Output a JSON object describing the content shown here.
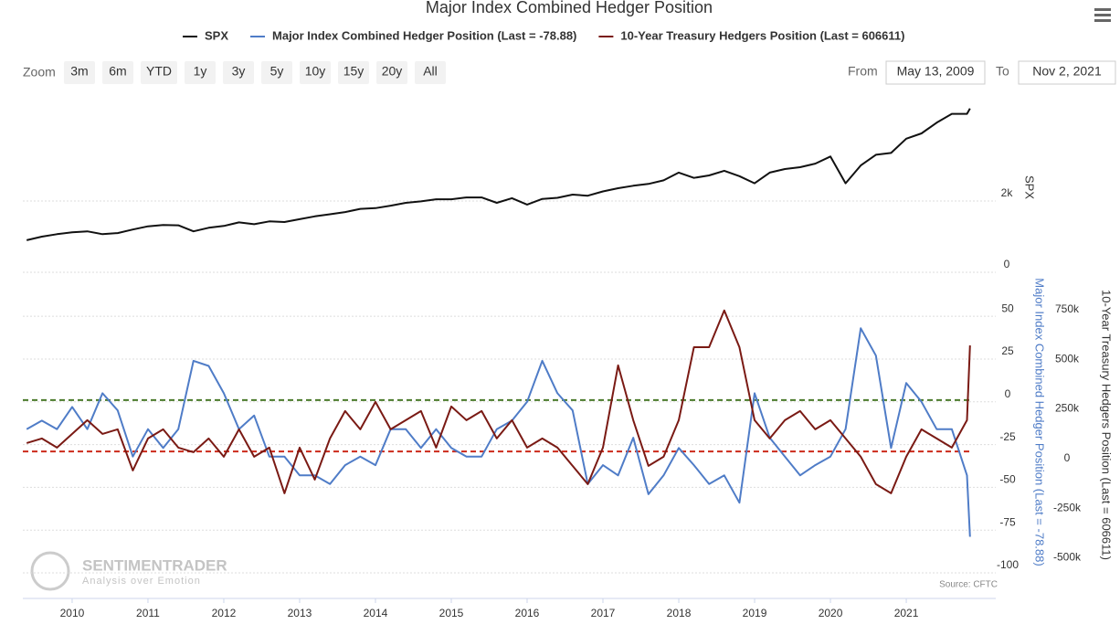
{
  "range_selector": {
    "zoom_label": "Zoom",
    "buttons": [
      "3m",
      "6m",
      "YTD",
      "1y",
      "3y",
      "5y",
      "10y",
      "15y",
      "20y",
      "All"
    ],
    "from_label": "From",
    "from": "May 13, 2009",
    "to_label": "To",
    "to": "Nov 2, 2021"
  },
  "chart_data": {
    "type": "line",
    "title": "Major Index Combined Hedger Position",
    "source": "Source: CFTC",
    "logo": "SENTIMENTRADER",
    "logo_tagline": "Analysis over Emotion",
    "x": [
      2009.4,
      2009.6,
      2009.8,
      2010,
      2010.2,
      2010.4,
      2010.6,
      2010.8,
      2011,
      2011.2,
      2011.4,
      2011.6,
      2011.8,
      2012,
      2012.2,
      2012.4,
      2012.6,
      2012.8,
      2013,
      2013.2,
      2013.4,
      2013.6,
      2013.8,
      2014,
      2014.2,
      2014.4,
      2014.6,
      2014.8,
      2015,
      2015.2,
      2015.4,
      2015.6,
      2015.8,
      2016,
      2016.2,
      2016.4,
      2016.6,
      2016.8,
      2017,
      2017.2,
      2017.4,
      2017.6,
      2017.8,
      2018,
      2018.2,
      2018.4,
      2018.6,
      2018.8,
      2019,
      2019.2,
      2019.4,
      2019.6,
      2019.8,
      2020,
      2020.2,
      2020.4,
      2020.6,
      2020.8,
      2021,
      2021.2,
      2021.4,
      2021.6,
      2021.8,
      2021.84
    ],
    "xlim": [
      2009.35,
      2022.18
    ],
    "xticks": [
      2010,
      2011,
      2012,
      2013,
      2014,
      2015,
      2016,
      2017,
      2018,
      2019,
      2020,
      2021
    ],
    "series": [
      {
        "name": "SPX",
        "color": "#111111",
        "axis": "y3",
        "values": [
          900,
          1000,
          1070,
          1120,
          1150,
          1070,
          1100,
          1200,
          1290,
          1330,
          1320,
          1150,
          1250,
          1300,
          1400,
          1350,
          1430,
          1410,
          1490,
          1570,
          1630,
          1690,
          1780,
          1800,
          1870,
          1950,
          1990,
          2050,
          2050,
          2100,
          2100,
          1950,
          2080,
          1900,
          2060,
          2090,
          2180,
          2150,
          2270,
          2360,
          2430,
          2480,
          2580,
          2800,
          2650,
          2720,
          2850,
          2700,
          2500,
          2800,
          2900,
          2950,
          3050,
          3250,
          2500,
          3000,
          3300,
          3350,
          3750,
          3900,
          4200,
          4450,
          4450,
          4600
        ]
      },
      {
        "name": "Major Index Combined Hedger Position (Last = -78.88)",
        "color": "#4f7cc7",
        "axis": "y",
        "values": [
          -16,
          -11,
          -16,
          -3,
          -16,
          5,
          -5,
          -32,
          -16,
          -27,
          -16,
          24,
          21,
          5,
          -16,
          -8,
          -32,
          -32,
          -43,
          -43,
          -48,
          -37,
          -32,
          -37,
          -16,
          -16,
          -27,
          -16,
          -27,
          -32,
          -32,
          -16,
          -11,
          0,
          24,
          5,
          -5,
          -48,
          -37,
          -43,
          -21,
          -54,
          -43,
          -27,
          -37,
          -48,
          -43,
          -59,
          5,
          -21,
          -32,
          -43,
          -37,
          -32,
          -16,
          43,
          27,
          -27,
          11,
          0,
          -16,
          -16,
          -43,
          -78.88
        ]
      },
      {
        "name": "10-Year Treasury Hedgers Position (Last = 606611)",
        "color": "#7a1a14",
        "axis": "y2",
        "values": [
          115000,
          138000,
          92000,
          161000,
          230000,
          161000,
          184000,
          -23000,
          138000,
          184000,
          92000,
          69000,
          138000,
          46000,
          184000,
          46000,
          92000,
          -138000,
          92000,
          -69000,
          138000,
          276000,
          184000,
          322000,
          184000,
          230000,
          276000,
          92000,
          299000,
          230000,
          276000,
          138000,
          230000,
          92000,
          138000,
          92000,
          0,
          -92000,
          92000,
          506000,
          230000,
          0,
          46000,
          230000,
          598000,
          598000,
          783000,
          598000,
          230000,
          138000,
          230000,
          276000,
          184000,
          230000,
          138000,
          46000,
          -92000,
          -138000,
          46000,
          184000,
          138000,
          92000,
          230000,
          606611
        ]
      }
    ],
    "y3lim": [
      0,
      5080
    ],
    "y3ticks": [
      0,
      {
        "value": 2000,
        "label": "2k"
      }
    ],
    "ylim": [
      -100,
      72
    ],
    "yticks": [
      -100,
      -75,
      -50,
      -25,
      0,
      25,
      50
    ],
    "y2lim": [
      -539000,
      943000
    ],
    "y2ticks": [
      {
        "value": -500000,
        "label": "-500k"
      },
      {
        "value": -250000,
        "label": "-250k"
      },
      0,
      {
        "value": 250000,
        "label": "250k"
      },
      {
        "value": 500000,
        "label": "500k"
      },
      {
        "value": 750000,
        "label": "750k"
      }
    ],
    "reference_lines": [
      {
        "value": 1,
        "color": "#4a7a2a"
      },
      {
        "value": -29,
        "color": "#cc2a1a"
      }
    ],
    "grid": true
  }
}
